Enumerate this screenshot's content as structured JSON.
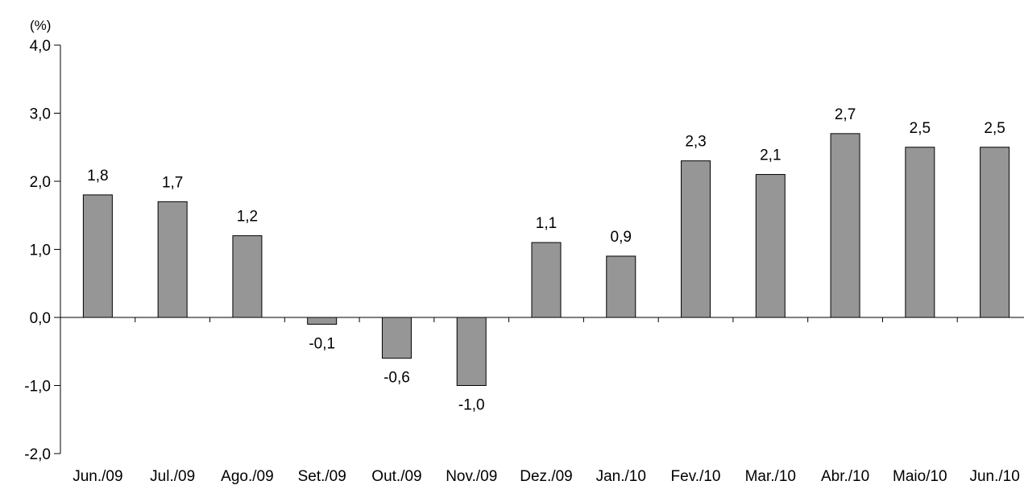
{
  "chart_data": {
    "type": "bar",
    "unit_label": "(%)",
    "categories": [
      "Jun./09",
      "Jul./09",
      "Ago./09",
      "Set./09",
      "Out./09",
      "Nov./09",
      "Dez./09",
      "Jan./10",
      "Fev./10",
      "Mar./10",
      "Abr./10",
      "Maio/10",
      "Jun./10"
    ],
    "values": [
      1.8,
      1.7,
      1.2,
      -0.1,
      -0.6,
      -1.0,
      1.1,
      0.9,
      2.3,
      2.1,
      2.7,
      2.5,
      2.5
    ],
    "data_labels": [
      "1,8",
      "1,7",
      "1,2",
      "-0,1",
      "-0,6",
      "-1,0",
      "1,1",
      "0,9",
      "2,3",
      "2,1",
      "2,7",
      "2,5",
      "2,5"
    ],
    "yticks": [
      -2,
      -1,
      0,
      1,
      2,
      3,
      4
    ],
    "ytick_labels": [
      "-2,0",
      "-1,0",
      "0,0",
      "1,0",
      "2,0",
      "3,0",
      "4,0"
    ],
    "ylim": [
      -2,
      4
    ],
    "bar_color": "#969696",
    "bar_edge_color": "#000000",
    "grid": false,
    "legend": "none"
  }
}
